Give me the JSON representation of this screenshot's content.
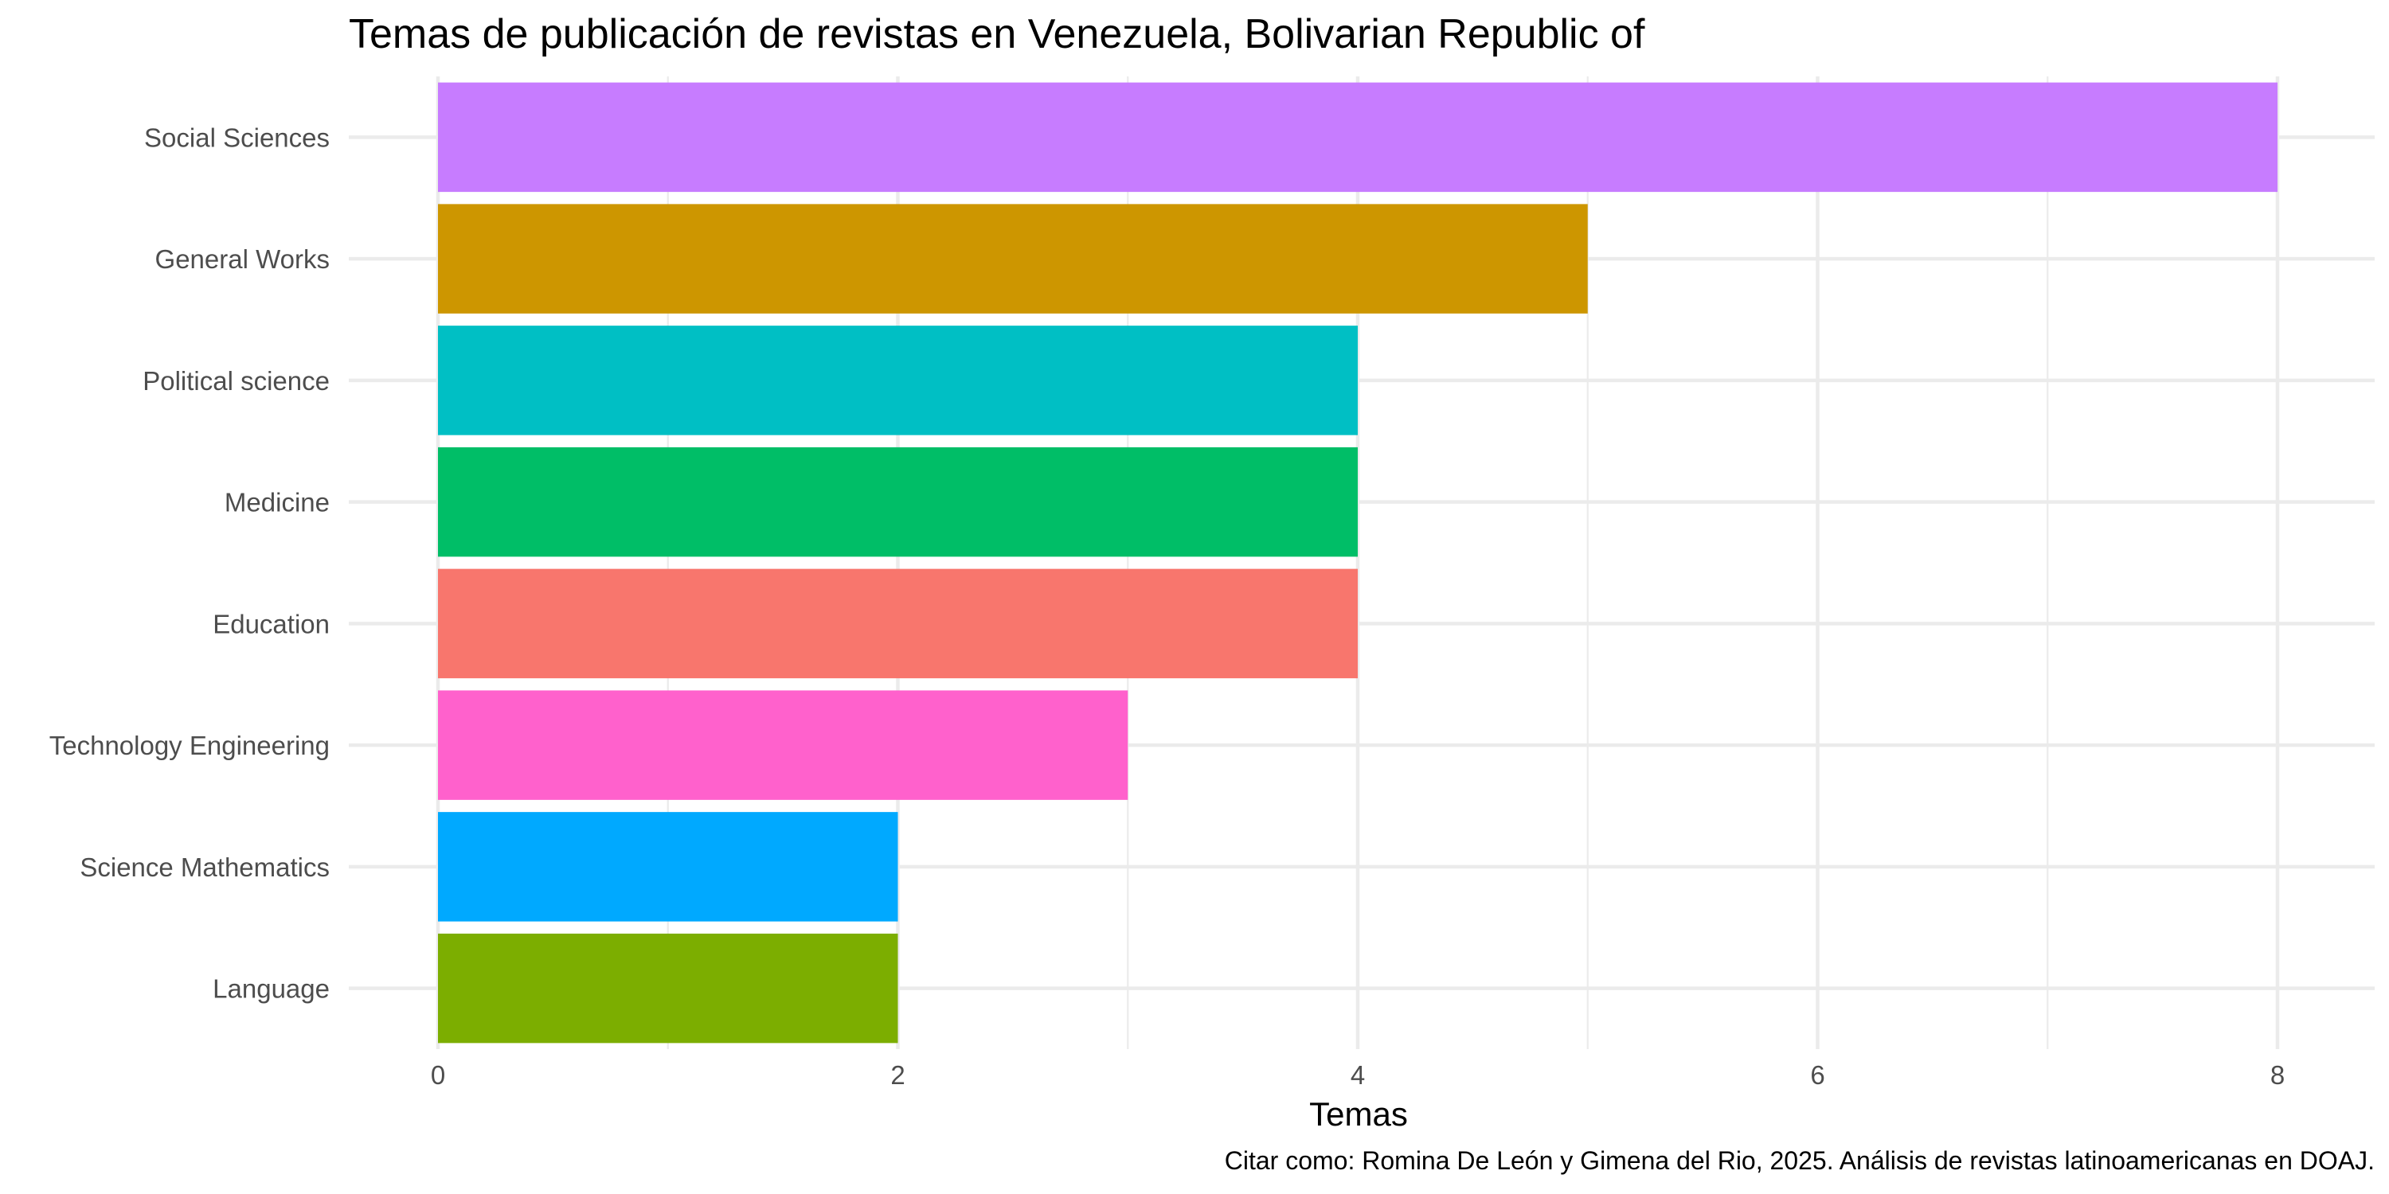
{
  "chart_data": {
    "type": "bar",
    "orientation": "horizontal",
    "title": "Temas de publicación de revistas en Venezuela, Bolivarian Republic of",
    "xlabel": "Temas",
    "ylabel": "",
    "caption": "Citar como: Romina De León y Gimena del Rio, 2025. Análisis de revistas latinoamericanas en DOAJ.",
    "categories": [
      "Social Sciences",
      "General Works",
      "Political science",
      "Medicine",
      "Education",
      "Technology Engineering",
      "Science Mathematics",
      "Language"
    ],
    "values": [
      8,
      5,
      4,
      4,
      4,
      3,
      2,
      2
    ],
    "colors": [
      "#C77CFF",
      "#CD9600",
      "#00BFC4",
      "#00BE67",
      "#F8766D",
      "#FF61CC",
      "#00A9FF",
      "#7CAE00"
    ],
    "xlim": [
      0,
      8.4
    ],
    "xticks": [
      0,
      2,
      4,
      6,
      8
    ],
    "grid": true,
    "legend": "none"
  }
}
